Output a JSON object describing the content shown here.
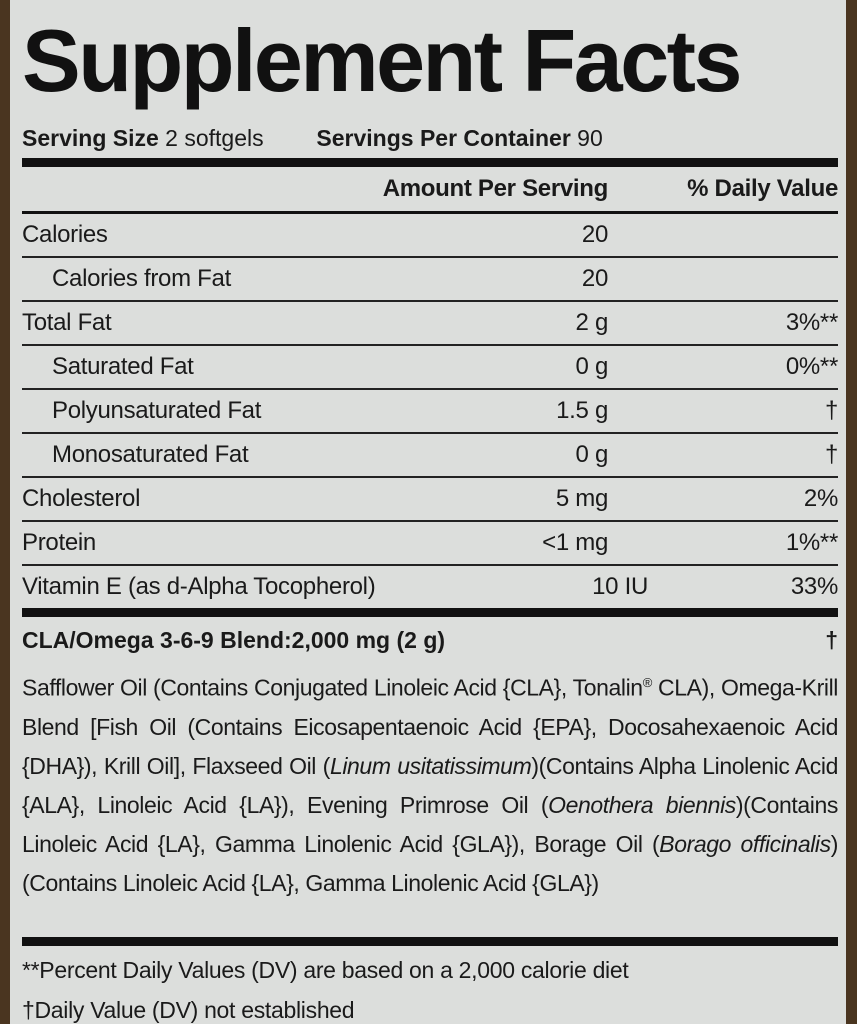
{
  "title": "Supplement Facts",
  "serving": {
    "size_label": "Serving Size",
    "size_value": "2 softgels",
    "per_container_label": "Servings Per Container",
    "per_container_value": "90"
  },
  "table": {
    "header": [
      "Amount Per Serving",
      "% Daily Value"
    ],
    "rows": [
      [
        "Calories",
        "20",
        null
      ],
      [
        "Calories from Fat",
        "20",
        null
      ],
      [
        "Total Fat",
        "2 g",
        "3%**"
      ],
      [
        "Saturated Fat",
        "0 g",
        "0%**"
      ],
      [
        "Polyunsaturated Fat",
        "1.5 g",
        "†"
      ],
      [
        "Monosaturated Fat",
        "0 g",
        "†"
      ],
      [
        "Cholesterol",
        "5 mg",
        "2%"
      ],
      [
        "Protein",
        "<1 mg",
        "1%**"
      ],
      [
        "Vitamin E (as d-Alpha Tocopherol)",
        "10 IU",
        "33%"
      ]
    ]
  },
  "blend": {
    "name": "CLA/Omega 3-6-9 Blend:",
    "amount": "2,000 mg (2 g)",
    "daily_value": "†",
    "ingredients": [
      "Safflower Oil (Contains Conjugated Linoleic Acid {CLA}, Tonalin",
      "®",
      " CLA), Omega-Krill Blend [Fish Oil (Contains Eicosapentaenoic Acid {EPA}, Docosahexaenoic Acid {DHA}), Krill Oil], Flaxseed Oil (",
      "Linum usitatissimum",
      ")(Contains Alpha Linolenic Acid {ALA}, Linoleic Acid {LA}), Evening Primrose Oil (",
      "Oenothera biennis",
      ")(Contains Linoleic Acid {LA}, Gamma Linolenic Acid {GLA}), Borage Oil (",
      "Borago officinalis",
      ")(Contains Linoleic Acid {LA}, Gamma Linolenic Acid {GLA})"
    ]
  },
  "footnotes": [
    "**Percent Daily Values (DV) are based on a 2,000 calorie diet",
    "†Daily Value (DV) not established"
  ]
}
